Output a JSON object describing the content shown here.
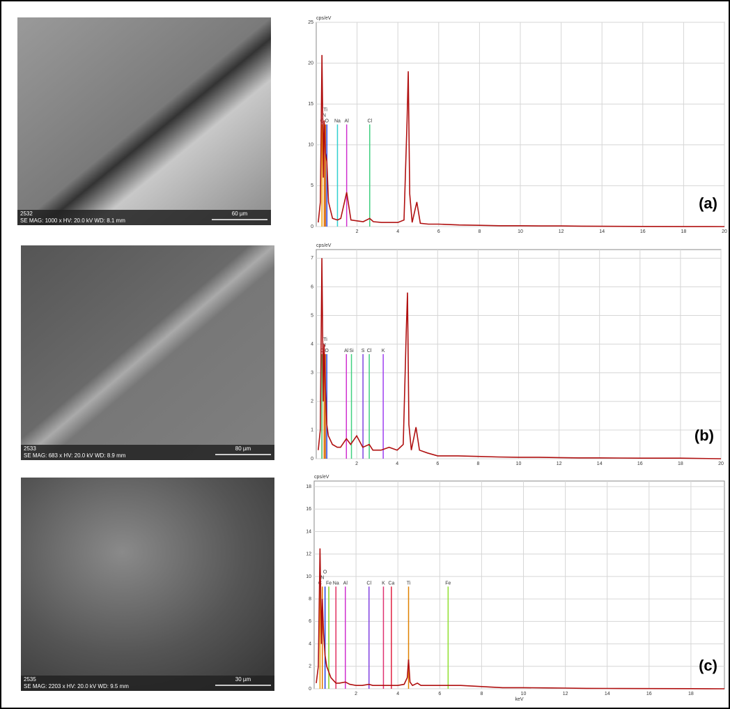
{
  "images": [
    {
      "id": "2532",
      "caption": "SE  MAG: 1000 x  HV: 20.0 kV  WD: 8.1 mm",
      "scale": "60 µm"
    },
    {
      "id": "2533",
      "caption": "SE  MAG: 683 x  HV: 20.0 kV  WD: 8.9 mm",
      "scale": "80 µm"
    },
    {
      "id": "2535",
      "caption": "SE  MAG: 2203 x  HV: 20.0 kV  WD: 9.5 mm",
      "scale": "30 µm"
    }
  ],
  "chart_data": [
    {
      "type": "spectrum",
      "label": "(a)",
      "y_label": "cps/eV",
      "color": "#b01010",
      "xlim": [
        0,
        20
      ],
      "xticks": [
        2,
        4,
        6,
        8,
        10,
        12,
        14,
        16,
        18,
        20
      ],
      "ylim": [
        0,
        25
      ],
      "yticks": [
        0,
        5,
        10,
        15,
        20,
        25
      ],
      "grid": true,
      "x": [
        0.1,
        0.2,
        0.28,
        0.35,
        0.39,
        0.45,
        0.52,
        0.6,
        0.8,
        1.04,
        1.2,
        1.49,
        1.7,
        2.0,
        2.3,
        2.62,
        2.8,
        3.2,
        3.6,
        4.0,
        4.3,
        4.45,
        4.51,
        4.58,
        4.7,
        4.93,
        5.1,
        5.5,
        6,
        7,
        8,
        9,
        10,
        11,
        12,
        13,
        14,
        16,
        18,
        20
      ],
      "values": [
        0.5,
        3,
        21,
        6,
        13,
        9,
        8,
        3,
        1,
        0.8,
        1,
        4.2,
        0.8,
        0.7,
        0.6,
        1,
        0.6,
        0.5,
        0.5,
        0.5,
        0.8,
        13,
        19,
        4,
        0.5,
        3,
        0.4,
        0.3,
        0.3,
        0.2,
        0.15,
        0.1,
        0.1,
        0.08,
        0.08,
        0.05,
        0.03,
        0.02,
        0.01,
        0
      ],
      "annotations": [
        {
          "text": "C",
          "x": 0.28,
          "y": 12.5,
          "color": "#f0a000"
        },
        {
          "text": "N",
          "x": 0.39,
          "y": 12.5,
          "color": "#e07000"
        },
        {
          "text": "Ti",
          "x": 0.45,
          "y": 12.5,
          "color": "#d06000"
        },
        {
          "text": "O",
          "x": 0.52,
          "y": 12.5,
          "color": "#2040e0"
        },
        {
          "text": "Na",
          "x": 1.04,
          "y": 12.5,
          "color": "#30d0d0"
        },
        {
          "text": "Al",
          "x": 1.49,
          "y": 12.5,
          "color": "#d030d0"
        },
        {
          "text": "Cl",
          "x": 2.62,
          "y": 12.5,
          "color": "#40d080"
        }
      ]
    },
    {
      "type": "spectrum",
      "label": "(b)",
      "y_label": "cps/eV",
      "color": "#b01010",
      "xlim": [
        0,
        20
      ],
      "xticks": [
        2,
        4,
        6,
        8,
        10,
        12,
        14,
        16,
        18,
        20
      ],
      "ylim": [
        0,
        7.3
      ],
      "yticks": [
        0,
        1,
        2,
        3,
        4,
        5,
        6,
        7
      ],
      "grid": true,
      "x": [
        0.1,
        0.2,
        0.28,
        0.35,
        0.39,
        0.45,
        0.52,
        0.6,
        0.8,
        1.04,
        1.2,
        1.49,
        1.7,
        2.0,
        2.3,
        2.62,
        2.8,
        3.2,
        3.6,
        4.0,
        4.3,
        4.45,
        4.51,
        4.58,
        4.7,
        4.93,
        5.1,
        5.5,
        6,
        7,
        8,
        9,
        10,
        11,
        12,
        13,
        14,
        16,
        18,
        20
      ],
      "values": [
        0.3,
        1,
        7,
        2,
        4,
        2.5,
        1.2,
        0.8,
        0.5,
        0.4,
        0.4,
        0.7,
        0.5,
        0.8,
        0.4,
        0.5,
        0.3,
        0.3,
        0.4,
        0.3,
        0.5,
        4.5,
        5.8,
        1.2,
        0.3,
        1.1,
        0.3,
        0.2,
        0.1,
        0.1,
        0.08,
        0.06,
        0.05,
        0.05,
        0.04,
        0.03,
        0.03,
        0.02,
        0.02,
        0
      ],
      "annotations": [
        {
          "text": "C",
          "x": 0.28,
          "y": 3.65,
          "color": "#40c060"
        },
        {
          "text": "N",
          "x": 0.39,
          "y": 3.65,
          "color": "#e07000"
        },
        {
          "text": "Ti",
          "x": 0.45,
          "y": 3.65,
          "color": "#d06000"
        },
        {
          "text": "O",
          "x": 0.52,
          "y": 3.65,
          "color": "#2040e0"
        },
        {
          "text": "Al",
          "x": 1.49,
          "y": 3.65,
          "color": "#d030d0"
        },
        {
          "text": "Si",
          "x": 1.74,
          "y": 3.65,
          "color": "#40d080"
        },
        {
          "text": "S",
          "x": 2.31,
          "y": 3.65,
          "color": "#8040e0"
        },
        {
          "text": "Cl",
          "x": 2.62,
          "y": 3.65,
          "color": "#40d080"
        },
        {
          "text": "K",
          "x": 3.31,
          "y": 3.65,
          "color": "#a040f0"
        }
      ]
    },
    {
      "type": "spectrum",
      "label": "(c)",
      "y_label": "cps/eV",
      "x_label": "keV",
      "color": "#b01010",
      "xlim": [
        0,
        19.6
      ],
      "xticks": [
        2,
        4,
        6,
        8,
        10,
        12,
        14,
        16,
        18
      ],
      "ylim": [
        0,
        18.5
      ],
      "yticks": [
        0,
        2,
        4,
        6,
        8,
        10,
        12,
        14,
        16,
        18
      ],
      "grid": true,
      "x": [
        0.1,
        0.2,
        0.28,
        0.35,
        0.39,
        0.45,
        0.52,
        0.6,
        0.8,
        1.04,
        1.2,
        1.49,
        1.7,
        2.0,
        2.3,
        2.62,
        2.8,
        3.2,
        3.6,
        4.0,
        4.3,
        4.45,
        4.51,
        4.58,
        4.7,
        4.93,
        5.1,
        5.5,
        6,
        7,
        8,
        9,
        10,
        11,
        12,
        13,
        14,
        16,
        18,
        19.6
      ],
      "values": [
        0.5,
        2,
        12.5,
        4,
        8,
        5,
        3,
        2,
        1,
        0.5,
        0.5,
        0.6,
        0.4,
        0.3,
        0.3,
        0.4,
        0.3,
        0.3,
        0.3,
        0.3,
        0.4,
        1,
        2.6,
        0.6,
        0.3,
        0.5,
        0.3,
        0.3,
        0.3,
        0.3,
        0.2,
        0.1,
        0.1,
        0.08,
        0.06,
        0.04,
        0.03,
        0.02,
        0.01,
        0
      ],
      "annotations": [
        {
          "text": "C",
          "x": 0.28,
          "y": 9.1,
          "color": "#f0a000"
        },
        {
          "text": "N",
          "x": 0.39,
          "y": 9.1,
          "color": "#e07000"
        },
        {
          "text": "O",
          "x": 0.52,
          "y": 9.1,
          "color": "#2040e0"
        },
        {
          "text": "Fe",
          "x": 0.7,
          "y": 9.1,
          "color": "#80d020"
        },
        {
          "text": "Na",
          "x": 1.04,
          "y": 9.1,
          "color": "#e03060"
        },
        {
          "text": "Al",
          "x": 1.49,
          "y": 9.1,
          "color": "#d030d0"
        },
        {
          "text": "Cl",
          "x": 2.62,
          "y": 9.1,
          "color": "#8040e0"
        },
        {
          "text": "K",
          "x": 3.31,
          "y": 9.1,
          "color": "#e03070"
        },
        {
          "text": "Ca",
          "x": 3.69,
          "y": 9.1,
          "color": "#e02040"
        },
        {
          "text": "Ti",
          "x": 4.51,
          "y": 9.1,
          "color": "#e08000"
        },
        {
          "text": "Fe",
          "x": 6.4,
          "y": 9.1,
          "color": "#90e030"
        }
      ]
    }
  ]
}
